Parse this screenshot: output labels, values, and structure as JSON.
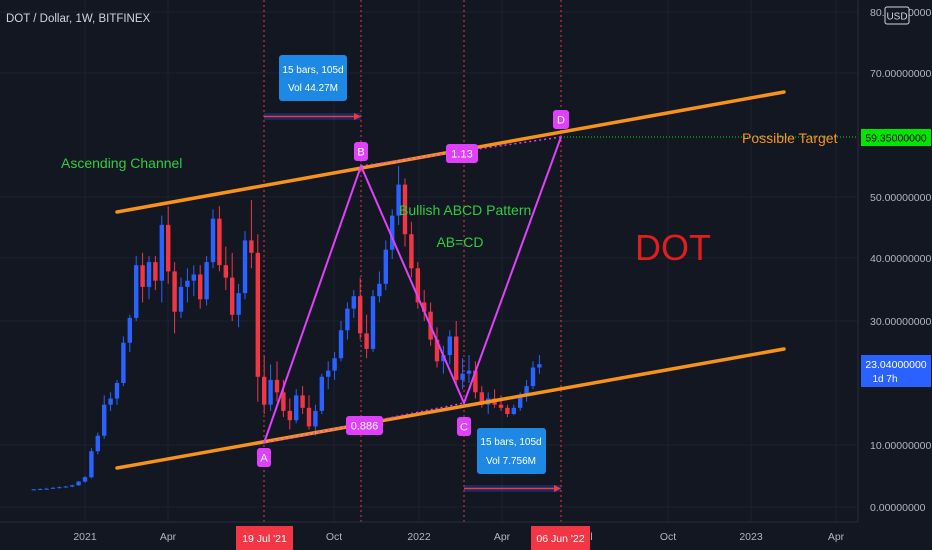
{
  "header": {
    "symbol_title": "DOT / Dollar, 1W, BITFINEX",
    "currency_badge": "USD"
  },
  "colors": {
    "background": "#131722",
    "grid": "#1e222d",
    "candle_up": "#2962ff",
    "candle_down": "#f23645",
    "channel": "#f7931a",
    "pattern": "#e040fb",
    "annotation_green": "#2ecc40",
    "dot_label": "#e01e1e",
    "target_price_bg": "#00e600",
    "current_price_bg": "#2962ff",
    "date_marker_bg": "#f23645",
    "info_box_bg": "#1e88e5"
  },
  "price_axis": {
    "labels": [
      "80.00000000",
      "70.00000000",
      "50.00000000",
      "40.00000000",
      "30.00000000",
      "10.00000000",
      "0.00000000"
    ],
    "target_price": "59.35000000",
    "current_price": "23.04000000",
    "countdown": "1d 7h"
  },
  "time_axis": {
    "labels": [
      "2021",
      "Apr",
      "Oct",
      "2022",
      "Apr",
      "Jul",
      "Oct",
      "2023",
      "Apr"
    ],
    "marker_a_date": "19 Jul '21",
    "marker_d_date": "06 Jun '22"
  },
  "annotations": {
    "ascending_channel": "Ascending Channel",
    "pattern_title": "Bullish ABCD Pattern",
    "pattern_subtitle": "AB=CD",
    "big_label": "DOT",
    "possible_target": "Possible Target",
    "point_a": "A",
    "point_b": "B",
    "point_c": "C",
    "point_d": "D",
    "ratio_bc": "0.886",
    "ratio_cd": "1.13",
    "box_ab_line1": "15 bars, 105d",
    "box_ab_line2": "Vol 44.27M",
    "box_cd_line1": "15 bars, 105d",
    "box_cd_line2": "Vol 7.756M"
  },
  "chart_data": {
    "type": "candlestick",
    "title": "DOT / Dollar, 1W, BITFINEX",
    "x_unit": "weeks since start of 2021",
    "ylim": [
      0,
      80
    ],
    "candles": [
      [
        -8,
        2.8,
        2.9,
        2.7,
        2.85
      ],
      [
        -7,
        2.85,
        3.0,
        2.8,
        2.9
      ],
      [
        -6,
        2.9,
        3.1,
        2.8,
        2.95
      ],
      [
        -5,
        2.95,
        3.2,
        2.9,
        3.1
      ],
      [
        -4,
        3.1,
        3.3,
        3.0,
        3.2
      ],
      [
        -3,
        3.2,
        3.4,
        3.1,
        3.3
      ],
      [
        -2,
        3.3,
        3.6,
        3.2,
        3.5
      ],
      [
        -1,
        3.5,
        4.2,
        3.4,
        4.1
      ],
      [
        0,
        4.1,
        5.0,
        3.9,
        4.8
      ],
      [
        1,
        4.8,
        9.5,
        4.6,
        9.0
      ],
      [
        2,
        9.0,
        12.0,
        8.5,
        11.5
      ],
      [
        3,
        11.5,
        18.0,
        11.0,
        16.5
      ],
      [
        4,
        16.5,
        18.5,
        15.5,
        17.5
      ],
      [
        5,
        17.5,
        20.5,
        16.5,
        20.0
      ],
      [
        6,
        20.0,
        27.5,
        19.5,
        26.5
      ],
      [
        7,
        26.5,
        31.0,
        25.0,
        30.5
      ],
      [
        8,
        30.5,
        40.5,
        30.0,
        39.0
      ],
      [
        9,
        39.0,
        41.0,
        33.0,
        35.5
      ],
      [
        10,
        35.5,
        40.5,
        33.5,
        39.5
      ],
      [
        11,
        39.5,
        40.5,
        35.0,
        36.5
      ],
      [
        12,
        36.5,
        47.0,
        33.0,
        45.5
      ],
      [
        13,
        45.5,
        48.5,
        36.0,
        38.0
      ],
      [
        14,
        38.0,
        39.5,
        28.0,
        31.5
      ],
      [
        15,
        31.5,
        37.0,
        30.5,
        35.5
      ],
      [
        16,
        35.5,
        38.5,
        33.0,
        36.5
      ],
      [
        17,
        36.5,
        39.0,
        34.0,
        37.5
      ],
      [
        18,
        37.5,
        39.0,
        32.0,
        33.5
      ],
      [
        19,
        33.5,
        40.5,
        32.5,
        39.5
      ],
      [
        20,
        39.5,
        48.0,
        38.5,
        46.5
      ],
      [
        21,
        46.5,
        48.5,
        38.0,
        39.0
      ],
      [
        22,
        39.0,
        42.0,
        35.0,
        37.0
      ],
      [
        23,
        37.0,
        41.0,
        30.0,
        31.0
      ],
      [
        24,
        31.0,
        36.0,
        29.0,
        34.5
      ],
      [
        25,
        34.5,
        44.5,
        33.5,
        43.0
      ],
      [
        26,
        43.0,
        49.5,
        38.5,
        41.0
      ],
      [
        27,
        41.0,
        44.0,
        17.0,
        21.0
      ],
      [
        28,
        21.0,
        24.5,
        15.0,
        16.5
      ],
      [
        29,
        16.5,
        23.0,
        15.5,
        20.5
      ],
      [
        30,
        20.5,
        23.5,
        17.0,
        18.5
      ],
      [
        31,
        18.5,
        20.5,
        14.5,
        15.5
      ],
      [
        32,
        15.5,
        17.5,
        12.5,
        14.0
      ],
      [
        33,
        14.0,
        19.0,
        13.5,
        18.0
      ],
      [
        34,
        18.0,
        19.5,
        15.0,
        16.0
      ],
      [
        35,
        16.0,
        18.0,
        12.5,
        13.0
      ],
      [
        36,
        13.0,
        16.5,
        11.5,
        15.5
      ],
      [
        37,
        15.5,
        21.5,
        15.0,
        21.0
      ],
      [
        38,
        21.0,
        23.5,
        19.0,
        22.0
      ],
      [
        39,
        22.0,
        25.0,
        20.5,
        24.0
      ],
      [
        40,
        24.0,
        30.0,
        23.5,
        28.5
      ],
      [
        41,
        28.5,
        33.0,
        27.0,
        32.0
      ],
      [
        42,
        32.0,
        35.0,
        30.5,
        34.0
      ],
      [
        43,
        34.0,
        37.0,
        27.0,
        28.0
      ],
      [
        44,
        28.0,
        31.0,
        24.0,
        25.5
      ],
      [
        45,
        25.5,
        35.0,
        25.0,
        34.0
      ],
      [
        46,
        34.0,
        38.0,
        33.0,
        36.0
      ],
      [
        47,
        36.0,
        43.0,
        35.0,
        41.5
      ],
      [
        48,
        41.5,
        48.0,
        40.0,
        47.0
      ],
      [
        49,
        47.0,
        55.0,
        45.5,
        52.0
      ],
      [
        50,
        52.0,
        53.0,
        42.0,
        44.0
      ],
      [
        51,
        44.0,
        46.0,
        37.0,
        38.5
      ],
      [
        52,
        38.5,
        39.5,
        32.0,
        33.0
      ],
      [
        53,
        33.0,
        35.0,
        30.0,
        31.5
      ],
      [
        54,
        31.5,
        33.0,
        26.0,
        27.0
      ],
      [
        55,
        27.0,
        29.0,
        22.5,
        23.5
      ],
      [
        56,
        23.5,
        26.0,
        21.5,
        24.5
      ],
      [
        57,
        24.5,
        28.5,
        23.0,
        27.5
      ],
      [
        58,
        27.5,
        30.0,
        19.5,
        20.5
      ],
      [
        59,
        20.5,
        24.0,
        19.0,
        21.5
      ],
      [
        60,
        21.5,
        24.5,
        20.0,
        22.0
      ],
      [
        61,
        22.0,
        23.5,
        17.5,
        18.5
      ],
      [
        62,
        18.5,
        19.5,
        16.0,
        16.5
      ],
      [
        63,
        16.5,
        18.5,
        15.0,
        17.5
      ],
      [
        64,
        17.5,
        19.0,
        16.0,
        16.5
      ],
      [
        65,
        16.5,
        18.0,
        15.5,
        16.0
      ],
      [
        66,
        16.0,
        16.5,
        14.5,
        15.0
      ],
      [
        67,
        15.0,
        16.5,
        14.8,
        16.0
      ],
      [
        68,
        16.0,
        18.5,
        15.5,
        18.0
      ],
      [
        69,
        18.0,
        20.5,
        17.0,
        19.5
      ],
      [
        70,
        19.5,
        23.5,
        19.0,
        22.5
      ],
      [
        71,
        22.5,
        24.5,
        21.5,
        23.04
      ]
    ],
    "channel": {
      "upper": [
        [
          7,
          48.0
        ],
        [
          94,
          66.0
        ]
      ],
      "lower": [
        [
          7,
          5.5
        ],
        [
          94,
          23.5
        ]
      ]
    },
    "abcd_points": [
      {
        "label": "A",
        "x": 28.5,
        "y": 10.0
      },
      {
        "label": "B",
        "x": 49,
        "y": 54.5
      },
      {
        "label": "C",
        "x": 65.5,
        "y": 15.0
      },
      {
        "label": "D",
        "x": 80,
        "y": 59.35
      }
    ],
    "target_price": 59.35
  }
}
